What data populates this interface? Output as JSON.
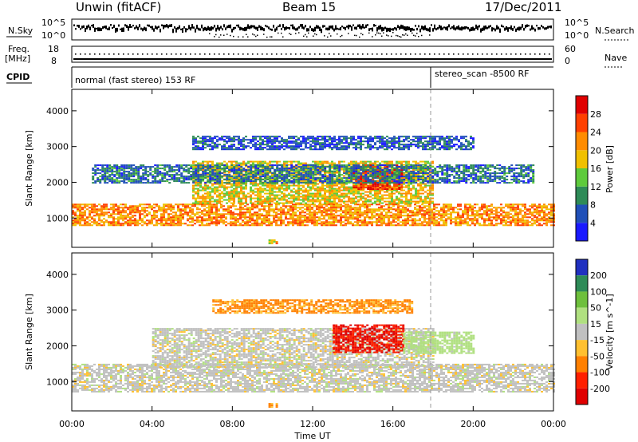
{
  "header": {
    "radar": "Unwin (fitACF)",
    "beam": "Beam 15",
    "date": "17/Dec/2011"
  },
  "params": {
    "nsky_label": "N.Sky",
    "nsky_ticks": [
      "10^5",
      "10^0"
    ],
    "nsearch_label": "N.Search",
    "nsearch_ticks": [
      "10^5",
      "10^0"
    ],
    "freq_label": "Freq.",
    "freq_unit": "[MHz]",
    "freq_ticks": [
      "18",
      "8"
    ],
    "nave_label": "Nave",
    "nave_ticks": [
      "60",
      "0"
    ],
    "cpid_label": "CPID",
    "cpid_modes": [
      {
        "name": "normal (fast stereo) 153 RF",
        "start_hour": 0
      },
      {
        "name": "stereo_scan -8500 RF",
        "start_hour": 18
      }
    ]
  },
  "chart_data": [
    {
      "type": "heatmap",
      "name": "power",
      "ylabel": "Slant Range [km]",
      "xlabel": "",
      "x_ticks": [
        "00:00",
        "04:00",
        "08:00",
        "12:00",
        "16:00",
        "20:00",
        "00:00"
      ],
      "x_hours": [
        0,
        4,
        8,
        12,
        16,
        20,
        24
      ],
      "xlim": [
        0,
        24
      ],
      "y_ticks": [
        1000,
        2000,
        3000,
        4000
      ],
      "ylim": [
        180,
        4600
      ],
      "colorbar": {
        "label": "Power [dB]",
        "ticks": [
          4,
          8,
          12,
          16,
          20,
          24,
          28
        ],
        "range": [
          0,
          32
        ],
        "colors": [
          "#1a1aff",
          "#2050b8",
          "#2e8b57",
          "#5ecb3c",
          "#f0c000",
          "#ff8c00",
          "#ff4000",
          "#e00000"
        ]
      },
      "echo_bands": [
        {
          "range_km": [
            800,
            1400
          ],
          "hours": [
            0,
            24
          ],
          "level_db": 22
        },
        {
          "range_km": [
            1400,
            2600
          ],
          "hours": [
            6,
            18
          ],
          "level_db": 18
        },
        {
          "range_km": [
            1800,
            2500
          ],
          "hours": [
            14,
            16.5
          ],
          "level_db": 28
        },
        {
          "range_km": [
            2000,
            2500
          ],
          "hours": [
            1,
            23
          ],
          "level_db": 8
        },
        {
          "range_km": [
            2900,
            3300
          ],
          "hours": [
            6,
            20
          ],
          "level_db": 6
        },
        {
          "range_km": [
            300,
            400
          ],
          "hours": [
            9.8,
            10.2
          ],
          "level_db": 20
        }
      ]
    },
    {
      "type": "heatmap",
      "name": "velocity",
      "ylabel": "Slant Range [km]",
      "xlabel": "Time UT",
      "x_ticks": [
        "00:00",
        "04:00",
        "08:00",
        "12:00",
        "16:00",
        "20:00",
        "00:00"
      ],
      "x_hours": [
        0,
        4,
        8,
        12,
        16,
        20,
        24
      ],
      "xlim": [
        0,
        24
      ],
      "y_ticks": [
        1000,
        2000,
        3000,
        4000
      ],
      "ylim": [
        180,
        4600
      ],
      "colorbar": {
        "label": "Velocity [m s^-1]",
        "ticks": [
          200,
          100,
          50,
          15,
          -15,
          -50,
          -100,
          -200
        ],
        "colors": [
          "#2030c0",
          "#2e8b57",
          "#6ec03c",
          "#b0e080",
          "#c0c0c0",
          "#ffc030",
          "#ff8000",
          "#ff2000",
          "#e00000"
        ]
      },
      "echo_bands": [
        {
          "range_km": [
            700,
            1500
          ],
          "hours": [
            0,
            24
          ],
          "velocity": 0
        },
        {
          "range_km": [
            1400,
            2500
          ],
          "hours": [
            4,
            18
          ],
          "velocity": 0
        },
        {
          "range_km": [
            1800,
            2600
          ],
          "hours": [
            13,
            16.5
          ],
          "velocity": -200
        },
        {
          "range_km": [
            1800,
            2400
          ],
          "hours": [
            16.5,
            20
          ],
          "velocity": 30
        },
        {
          "range_km": [
            2900,
            3300
          ],
          "hours": [
            7,
            17
          ],
          "velocity": -60
        },
        {
          "range_km": [
            300,
            400
          ],
          "hours": [
            9.8,
            10.2
          ],
          "velocity": -60
        }
      ]
    }
  ]
}
